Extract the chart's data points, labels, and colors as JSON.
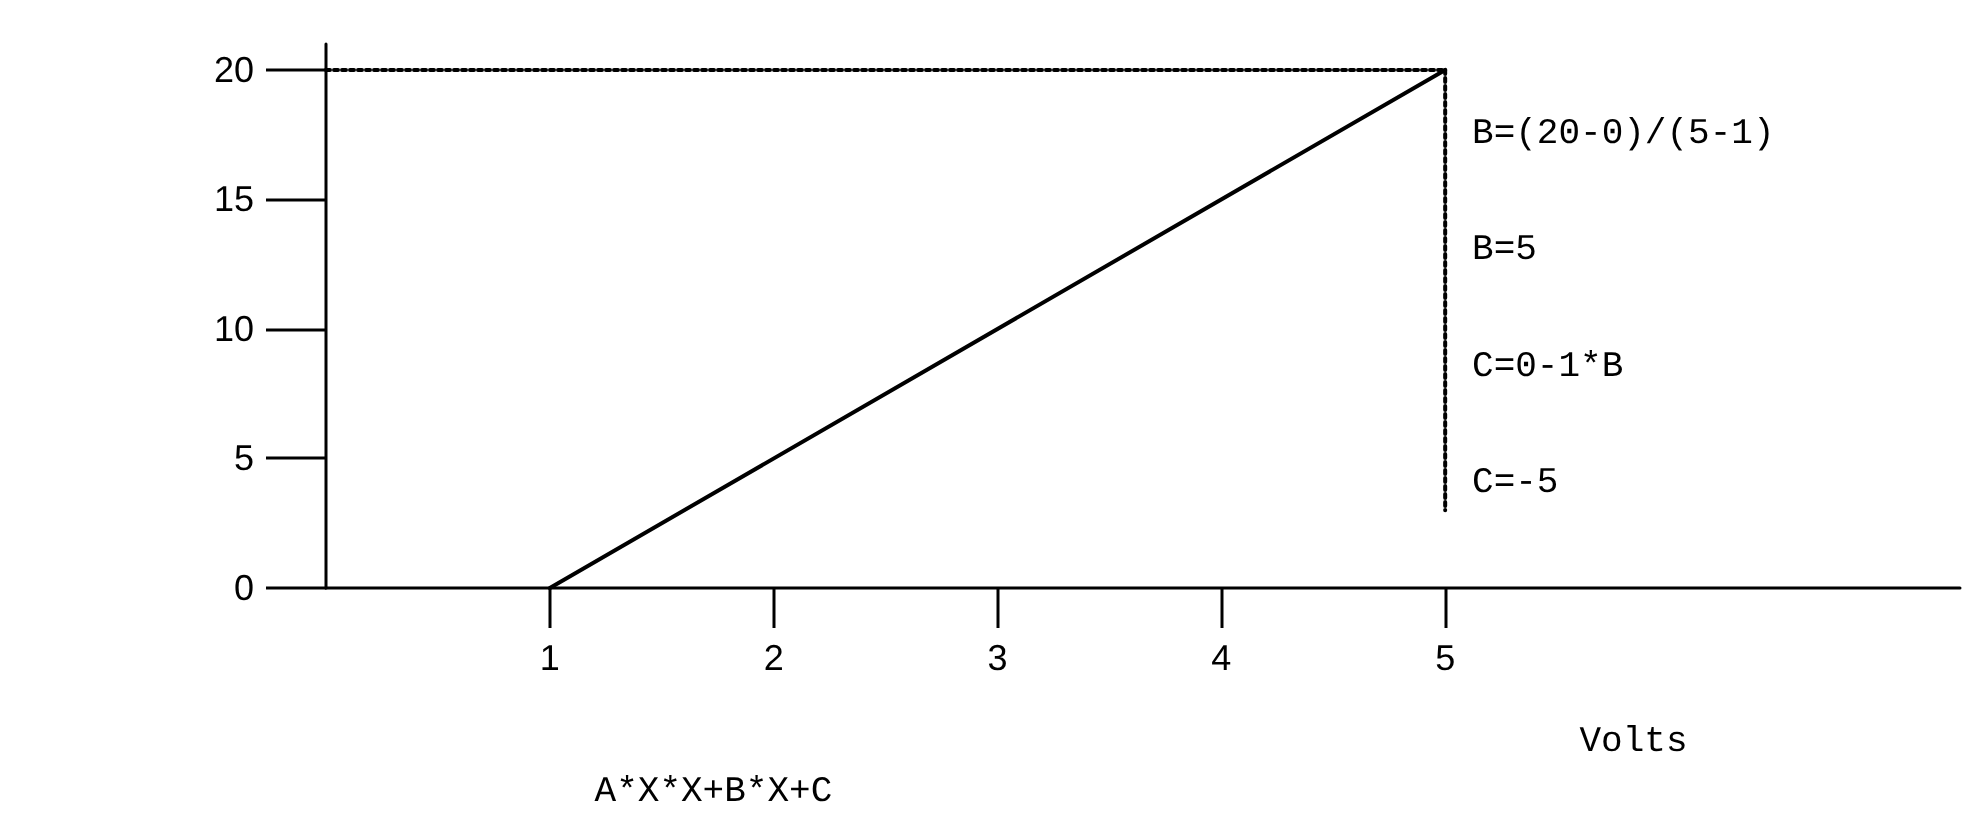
{
  "chart_data": {
    "type": "line",
    "xlabel": "Volts",
    "series": [
      {
        "color": "#000000",
        "x": [
          1,
          5
        ],
        "values": [
          0,
          20
        ],
        "line_style": "solid"
      },
      {
        "color": "#000000",
        "x": [
          0,
          5
        ],
        "values": [
          20,
          20
        ],
        "line_style": "dotted"
      },
      {
        "color": "#000000",
        "x": [
          5,
          5
        ],
        "values": [
          20,
          3
        ],
        "line_style": "dotted"
      }
    ],
    "annotations": [
      "B=(20-0)/(5-1)",
      "B=5",
      "C=0-1*B",
      "C=-5",
      "A*X*X+B*X+C"
    ],
    "xlim": [
      0,
      7.3
    ],
    "xticks": [
      1,
      2,
      3,
      4,
      5
    ],
    "ylim": [
      0,
      21
    ],
    "yticks": [
      0,
      5,
      10,
      15,
      20
    ],
    "grid": false,
    "marker": "none"
  }
}
